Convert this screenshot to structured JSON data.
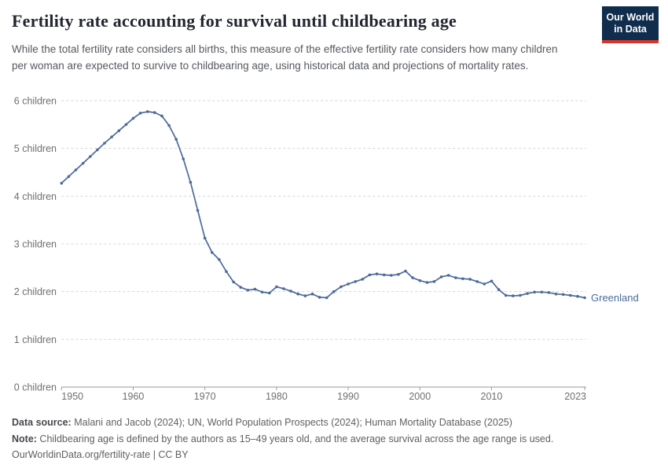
{
  "header": {
    "title": "Fertility rate accounting for survival until childbearing age",
    "subtitle": "While the total fertility rate considers all births, this measure of the effective fertility rate considers how many children per woman are expected to survive to childbearing age, using historical data and projections of mortality rates.",
    "logo": {
      "line1": "Our World",
      "line2": "in Data"
    }
  },
  "chart_data": {
    "type": "line",
    "title": "Fertility rate accounting for survival until childbearing age",
    "entity": "Greenland",
    "end_label": "Greenland",
    "grid": "horizontal-dashed",
    "legend_position": "end-of-line-label",
    "xlim": [
      1950,
      2023.3
    ],
    "ylim": [
      0,
      6
    ],
    "x_ticks": [
      1950,
      1960,
      1970,
      1980,
      1990,
      2000,
      2010,
      2023
    ],
    "y_ticks": [
      0,
      1,
      2,
      3,
      4,
      5,
      6
    ],
    "y_tick_labels": [
      "0 children",
      "1 children",
      "2 children",
      "3 children",
      "4 children",
      "5 children",
      "6 children"
    ],
    "x": [
      1950,
      1951,
      1952,
      1953,
      1954,
      1955,
      1956,
      1957,
      1958,
      1959,
      1960,
      1961,
      1962,
      1963,
      1964,
      1965,
      1966,
      1967,
      1968,
      1969,
      1970,
      1971,
      1972,
      1973,
      1974,
      1975,
      1976,
      1977,
      1978,
      1979,
      1980,
      1981,
      1982,
      1983,
      1984,
      1985,
      1986,
      1987,
      1988,
      1989,
      1990,
      1991,
      1992,
      1993,
      1994,
      1995,
      1996,
      1997,
      1998,
      1999,
      2000,
      2001,
      2002,
      2003,
      2004,
      2005,
      2006,
      2007,
      2008,
      2009,
      2010,
      2011,
      2012,
      2013,
      2014,
      2015,
      2016,
      2017,
      2018,
      2019,
      2020,
      2021,
      2022,
      2023
    ],
    "series": [
      {
        "name": "Greenland",
        "values": [
          4.27,
          4.41,
          4.55,
          4.69,
          4.83,
          4.97,
          5.11,
          5.24,
          5.37,
          5.5,
          5.63,
          5.74,
          5.77,
          5.75,
          5.68,
          5.48,
          5.19,
          4.78,
          4.29,
          3.7,
          3.12,
          2.82,
          2.67,
          2.42,
          2.2,
          2.09,
          2.03,
          2.05,
          1.99,
          1.97,
          2.1,
          2.06,
          2.01,
          1.95,
          1.91,
          1.95,
          1.88,
          1.87,
          2.0,
          2.1,
          2.16,
          2.21,
          2.26,
          2.35,
          2.37,
          2.35,
          2.34,
          2.36,
          2.43,
          2.29,
          2.23,
          2.19,
          2.21,
          2.31,
          2.34,
          2.29,
          2.27,
          2.26,
          2.21,
          2.16,
          2.22,
          2.04,
          1.92,
          1.91,
          1.92,
          1.96,
          1.99,
          1.99,
          1.98,
          1.95,
          1.94,
          1.92,
          1.9,
          1.87
        ]
      }
    ],
    "line_color": "#4c6a9c",
    "marker": "dot"
  },
  "colors": {
    "line": "#4c6a9c",
    "grid": "#d5d5d5",
    "axis": "#9a9a9a",
    "tick_text": "#6f6f6f",
    "logo_navy": "#102d4e",
    "logo_red": "#d7342c"
  },
  "footer": {
    "source_label": "Data source:",
    "source_text": " Malani and Jacob (2024); UN, World Population Prospects (2024); Human Mortality Database (2025)",
    "note_label": "Note:",
    "note_text": " Childbearing age is defined by the authors as 15–49 years old, and the average survival across the age range is used.",
    "url_line": "OurWorldinData.org/fertility-rate | CC BY"
  }
}
